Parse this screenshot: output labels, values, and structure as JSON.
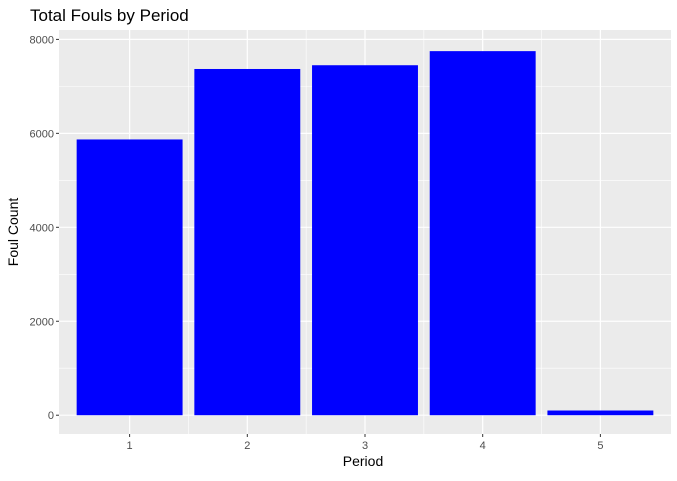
{
  "chart_data": {
    "type": "bar",
    "title": "Total Fouls by Period",
    "xlabel": "Period",
    "ylabel": "Foul Count",
    "categories": [
      "1",
      "2",
      "3",
      "4",
      "5"
    ],
    "values": [
      5870,
      7370,
      7450,
      7750,
      100
    ],
    "yticks": [
      "0",
      "2000",
      "4000",
      "6000",
      "8000"
    ],
    "ylim": [
      -400,
      8200
    ],
    "grid": true,
    "legend": "none",
    "colors": {
      "bar": "#0000ff",
      "panel": "#ebebeb",
      "grid": "#ffffff",
      "text": "#000000",
      "tick_text": "#4d4d4d",
      "tick_mark": "#333333"
    }
  }
}
